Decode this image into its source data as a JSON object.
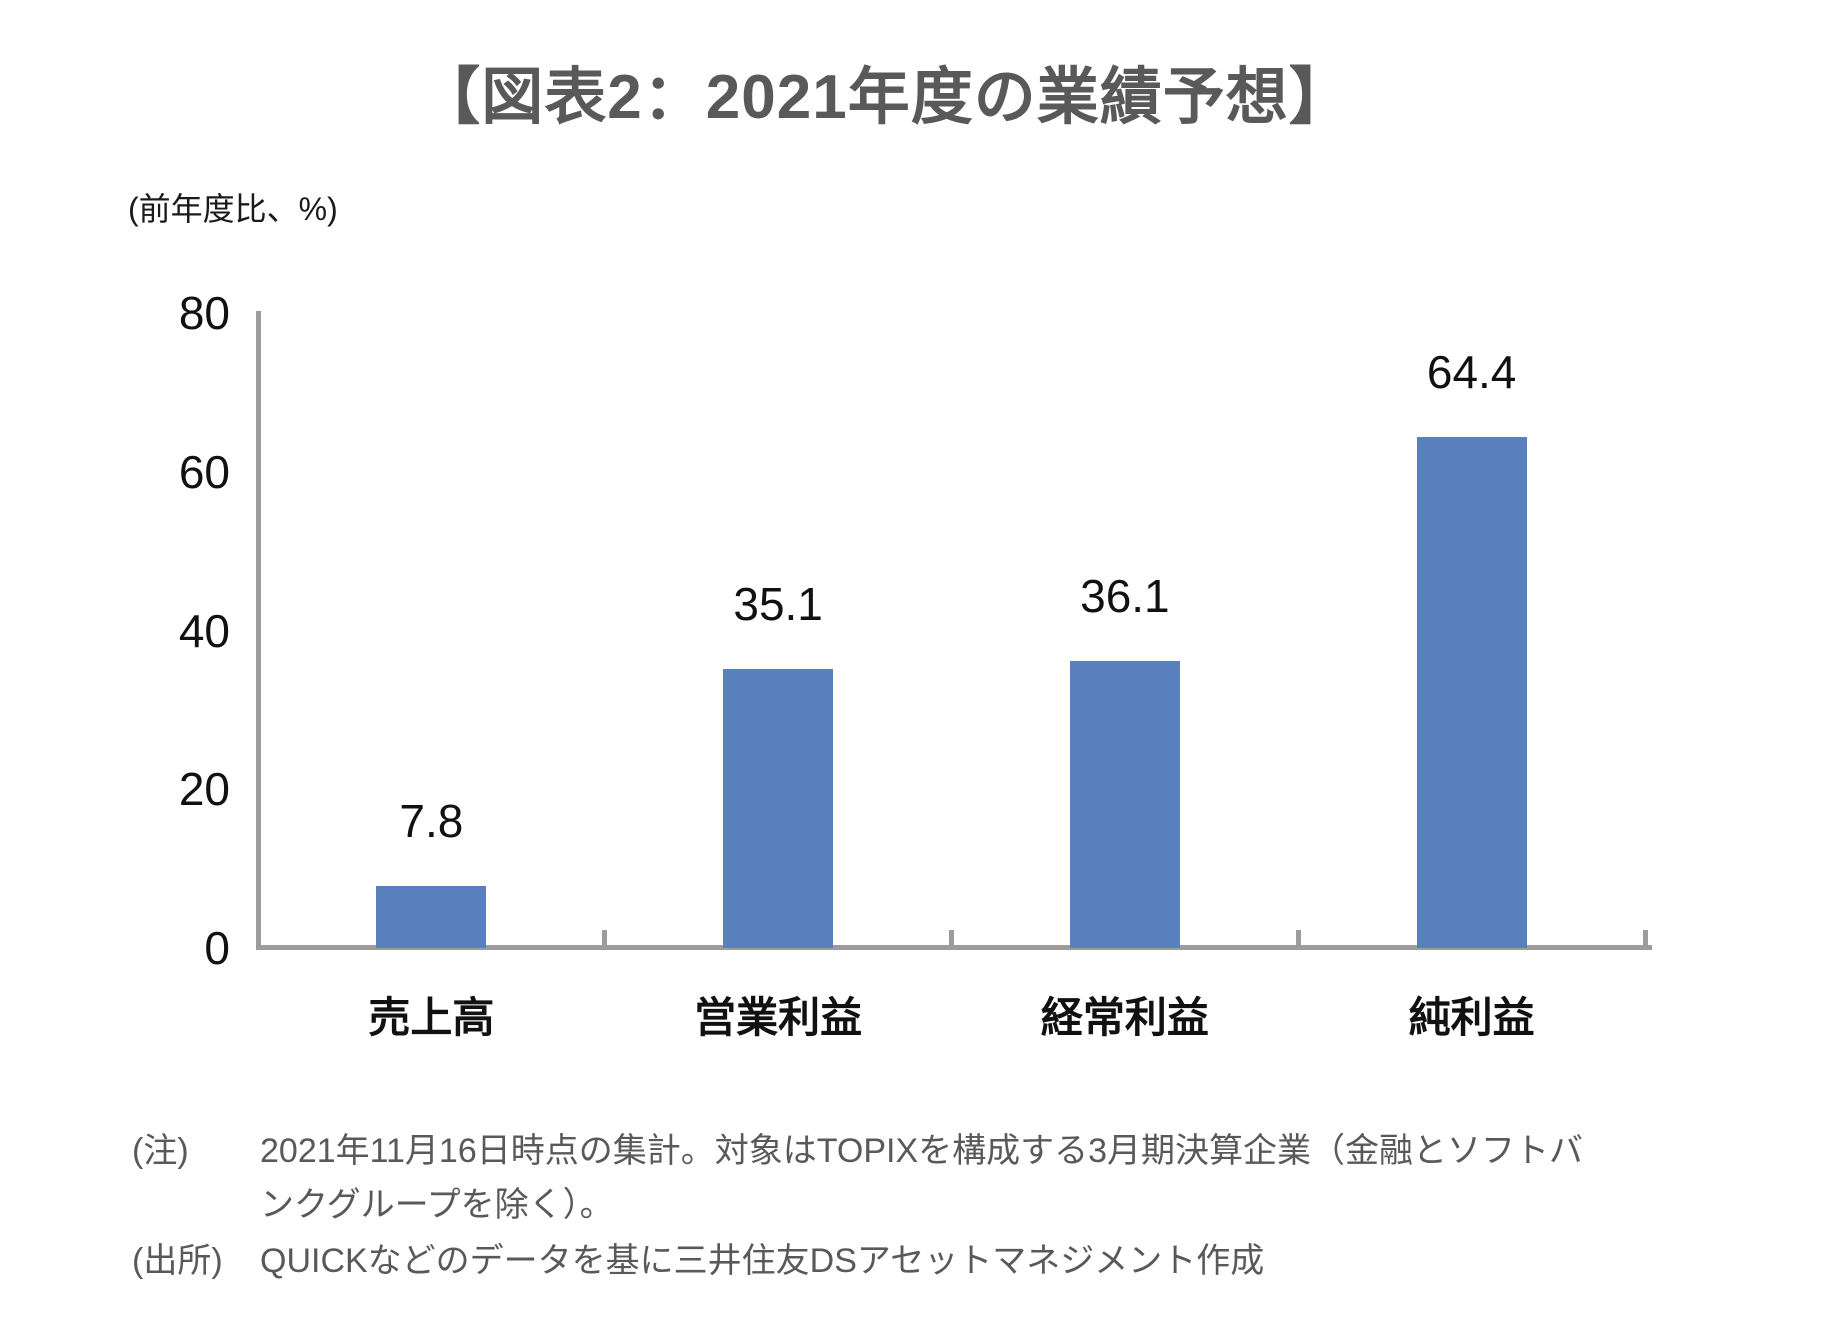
{
  "title": "【図表2：2021年度の業績予想】",
  "chart_data": {
    "type": "bar",
    "title": "【図表2：2021年度の業績予想】",
    "unit_label": "(前年度比、%)",
    "categories": [
      "売上高",
      "営業利益",
      "経常利益",
      "純利益"
    ],
    "values": [
      7.8,
      35.1,
      36.1,
      64.4
    ],
    "value_labels": [
      "7.8",
      "35.1",
      "36.1",
      "64.4"
    ],
    "ylim": [
      0,
      80
    ],
    "yticks": [
      0,
      20,
      40,
      60,
      80
    ],
    "grid": false,
    "legend": "none",
    "bar_color": "#5880bc",
    "axis_color": "#9c9c9c"
  },
  "notes": [
    {
      "label": "(注)",
      "text": "2021年11月16日時点の集計。対象はTOPIXを構成する3月期決算企業（金融とソフトバンクグループを除く）。"
    },
    {
      "label": "(出所)",
      "text": "QUICKなどのデータを基に三井住友DSアセットマネジメント作成"
    }
  ]
}
